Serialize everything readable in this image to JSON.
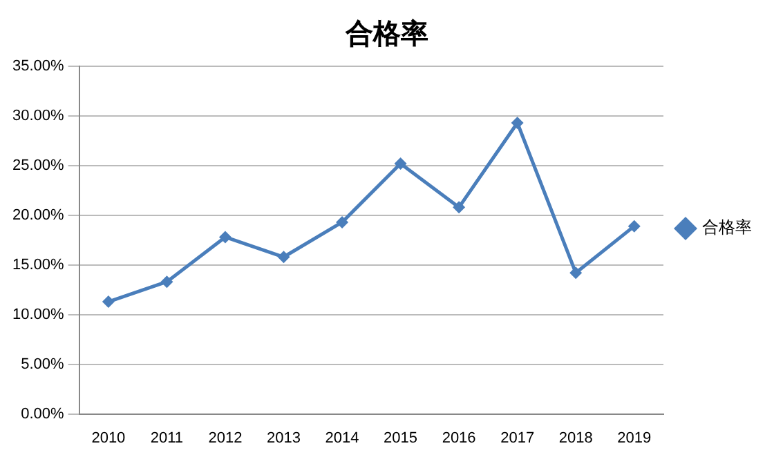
{
  "chart_data": {
    "type": "line",
    "title": "合格率",
    "categories": [
      "2010",
      "2011",
      "2012",
      "2013",
      "2014",
      "2015",
      "2016",
      "2017",
      "2018",
      "2019"
    ],
    "series": [
      {
        "name": "合格率",
        "color": "#4a7ebb",
        "values": [
          11.3,
          13.3,
          17.8,
          15.8,
          19.3,
          25.2,
          20.8,
          29.3,
          14.2,
          18.9
        ]
      }
    ],
    "ylim": [
      0,
      35
    ],
    "yticks": [
      {
        "value": 0,
        "label": "0.00%"
      },
      {
        "value": 5,
        "label": "5.00%"
      },
      {
        "value": 10,
        "label": "10.00%"
      },
      {
        "value": 15,
        "label": "15.00%"
      },
      {
        "value": 20,
        "label": "20.00%"
      },
      {
        "value": 25,
        "label": "25.00%"
      },
      {
        "value": 30,
        "label": "30.00%"
      },
      {
        "value": 35,
        "label": "35.00%"
      }
    ],
    "grid": "y",
    "legend": "right",
    "marker": "diamond",
    "line_style": "solid"
  }
}
